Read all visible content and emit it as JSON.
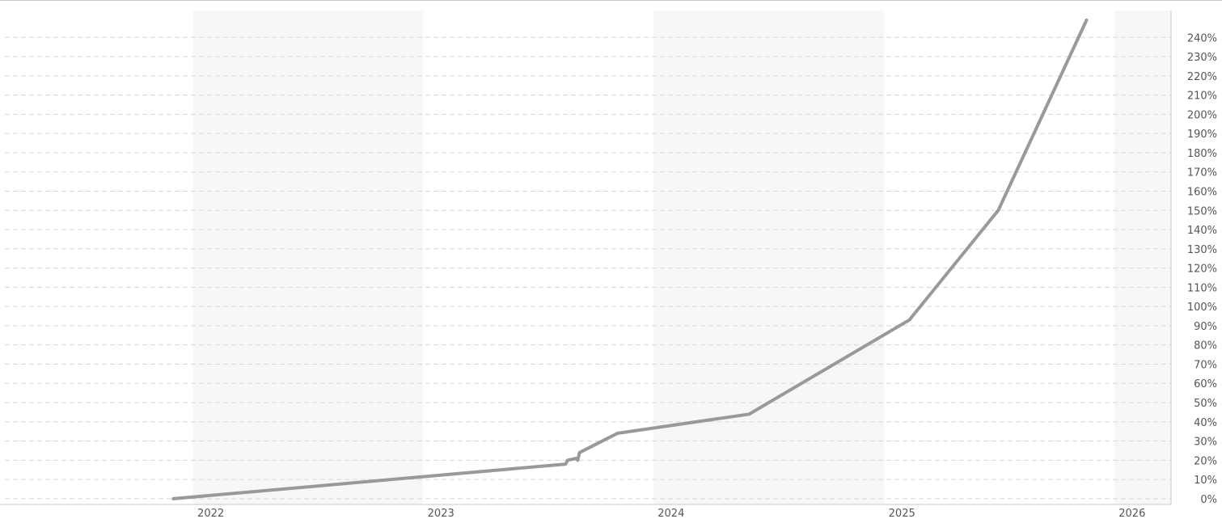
{
  "chart_data": {
    "type": "line",
    "title": "",
    "xlabel": "",
    "ylabel": "",
    "x_ticks": [
      "2022",
      "2023",
      "2024",
      "2025",
      "2026"
    ],
    "y_ticks": [
      "0%",
      "10%",
      "20%",
      "30%",
      "40%",
      "50%",
      "60%",
      "70%",
      "80%",
      "90%",
      "100%",
      "110%",
      "120%",
      "130%",
      "140%",
      "150%",
      "160%",
      "170%",
      "180%",
      "190%",
      "200%",
      "210%",
      "220%",
      "230%",
      "240%"
    ],
    "ylim": [
      -3,
      254
    ],
    "xlim": [
      "2021-03-01",
      "2026-04-01"
    ],
    "grid": true,
    "alternating_year_bands": true,
    "y_axis_position": "right",
    "line_color": "#999999",
    "series": [
      {
        "points": [
          [
            "2021-12-01",
            0
          ],
          [
            "2023-08-15",
            18
          ],
          [
            "2023-08-18",
            20
          ],
          [
            "2023-09-01",
            21
          ],
          [
            "2023-09-03",
            20
          ],
          [
            "2023-09-06",
            24
          ],
          [
            "2023-11-05",
            34
          ],
          [
            "2024-06-01",
            44
          ],
          [
            "2025-02-10",
            93
          ],
          [
            "2025-07-01",
            150
          ],
          [
            "2025-11-18",
            249
          ]
        ]
      }
    ]
  }
}
